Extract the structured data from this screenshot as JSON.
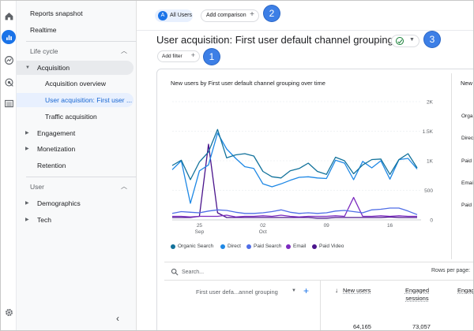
{
  "nav": {
    "reports_snapshot": "Reports snapshot",
    "realtime": "Realtime",
    "lifecycle": "Life cycle",
    "acquisition": "Acquisition",
    "acq_overview": "Acquisition overview",
    "user_acq": "User acquisition: First user ...",
    "traffic_acq": "Traffic acquisition",
    "engagement": "Engagement",
    "monetization": "Monetization",
    "retention": "Retention",
    "user_section": "User",
    "demographics": "Demographics",
    "tech": "Tech"
  },
  "topbar": {
    "all_users": "All Users",
    "all_users_avatar": "A",
    "add_comparison": "Add comparison"
  },
  "page": {
    "title": "User acquisition: First user default channel grouping",
    "add_filter": "Add filter"
  },
  "callouts": [
    "1",
    "2",
    "3"
  ],
  "chart_data": {
    "type": "line",
    "title": "New users by First user default channel grouping over time",
    "x_ticks": [
      "25 Sep",
      "02 Oct",
      "09",
      "16"
    ],
    "y_ticks": [
      "0",
      "500",
      "1K",
      "1.5K",
      "2K"
    ],
    "ylim": [
      0,
      2000
    ],
    "x": [
      1,
      2,
      3,
      4,
      5,
      6,
      7,
      8,
      9,
      10,
      11,
      12,
      13,
      14,
      15,
      16,
      17,
      18,
      19,
      20,
      21,
      22,
      23,
      24,
      25,
      26,
      27,
      28
    ],
    "series": [
      {
        "name": "Organic Search",
        "color": "#12729b",
        "values": [
          920,
          1010,
          680,
          980,
          1150,
          1530,
          1050,
          1100,
          1120,
          1080,
          820,
          730,
          710,
          830,
          870,
          960,
          820,
          770,
          1060,
          1000,
          780,
          930,
          1020,
          1030,
          770,
          1020,
          1120,
          880
        ]
      },
      {
        "name": "Direct",
        "color": "#1e88e5",
        "values": [
          850,
          1000,
          280,
          830,
          930,
          1470,
          1200,
          1040,
          900,
          870,
          610,
          560,
          610,
          670,
          720,
          730,
          710,
          700,
          1010,
          960,
          680,
          990,
          880,
          1000,
          690,
          1020,
          1040,
          860
        ]
      },
      {
        "name": "Paid Search",
        "color": "#4f6de6",
        "values": [
          110,
          140,
          130,
          120,
          150,
          170,
          160,
          130,
          110,
          110,
          120,
          140,
          170,
          130,
          110,
          120,
          110,
          120,
          150,
          160,
          140,
          120,
          170,
          180,
          200,
          200,
          150,
          90
        ]
      },
      {
        "name": "Email",
        "color": "#7b2abf",
        "values": [
          60,
          60,
          50,
          60,
          60,
          60,
          80,
          50,
          60,
          60,
          70,
          60,
          80,
          60,
          50,
          60,
          60,
          60,
          70,
          60,
          380,
          60,
          60,
          70,
          60,
          70,
          60,
          60
        ]
      },
      {
        "name": "Paid Video",
        "color": "#4a148c",
        "values": [
          40,
          40,
          40,
          60,
          1280,
          120,
          40,
          40,
          40,
          40,
          40,
          40,
          40,
          40,
          40,
          40,
          30,
          30,
          40,
          40,
          40,
          40,
          40,
          40,
          50,
          40,
          40,
          40
        ]
      }
    ]
  },
  "right_panel": {
    "title": "New",
    "labels": [
      "Orga",
      "Direc",
      "Paid",
      "Emai",
      "Paid"
    ]
  },
  "table": {
    "search_placeholder": "Search...",
    "rows_per_page": "Rows per page:",
    "dim_header": "First user defa...annel grouping",
    "headers": [
      "New users",
      "Engaged sessions",
      "Engag"
    ],
    "totals": [
      "64,165",
      "73,057"
    ]
  }
}
